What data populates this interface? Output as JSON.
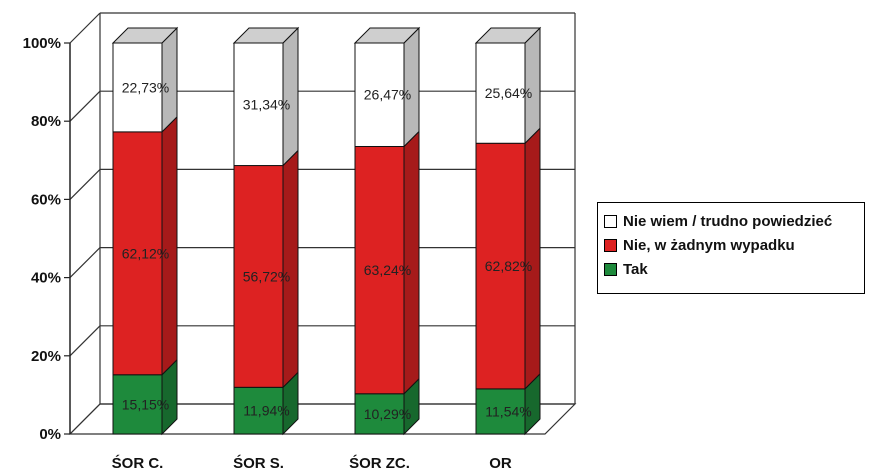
{
  "chart_data": {
    "type": "bar",
    "stacked": true,
    "three_d": true,
    "categories": [
      "ŚOR C.",
      "ŚOR S.",
      "ŚOR ZC.",
      "OR"
    ],
    "series": [
      {
        "name": "Tak",
        "color": "#1e8a3c",
        "values": [
          15.15,
          11.94,
          10.29,
          11.54
        ],
        "labels": [
          "15,15%",
          "11,94%",
          "10,29%",
          "11,54%"
        ]
      },
      {
        "name": "Nie, w żadnym wypadku",
        "color": "#dd2222",
        "values": [
          62.12,
          56.72,
          63.24,
          62.82
        ],
        "labels": [
          "62,12%",
          "56,72%",
          "63,24%",
          "62,82%"
        ]
      },
      {
        "name": "Nie wiem / trudno powiedzieć",
        "color": "#ffffff",
        "values": [
          22.73,
          31.34,
          26.47,
          25.64
        ],
        "labels": [
          "22,73%",
          "31,34%",
          "26,47%",
          "25,64%"
        ]
      }
    ],
    "y_ticks": [
      "0%",
      "20%",
      "40%",
      "60%",
      "80%",
      "100%"
    ],
    "ylim": [
      0,
      100
    ],
    "grid": true,
    "legend_position": "right"
  },
  "legend": {
    "items": [
      {
        "label": "Nie wiem / trudno powiedzieć",
        "color": "#ffffff"
      },
      {
        "label": "Nie, w żadnym wypadku",
        "color": "#dd2222"
      },
      {
        "label": "Tak",
        "color": "#1e8a3c"
      }
    ]
  }
}
